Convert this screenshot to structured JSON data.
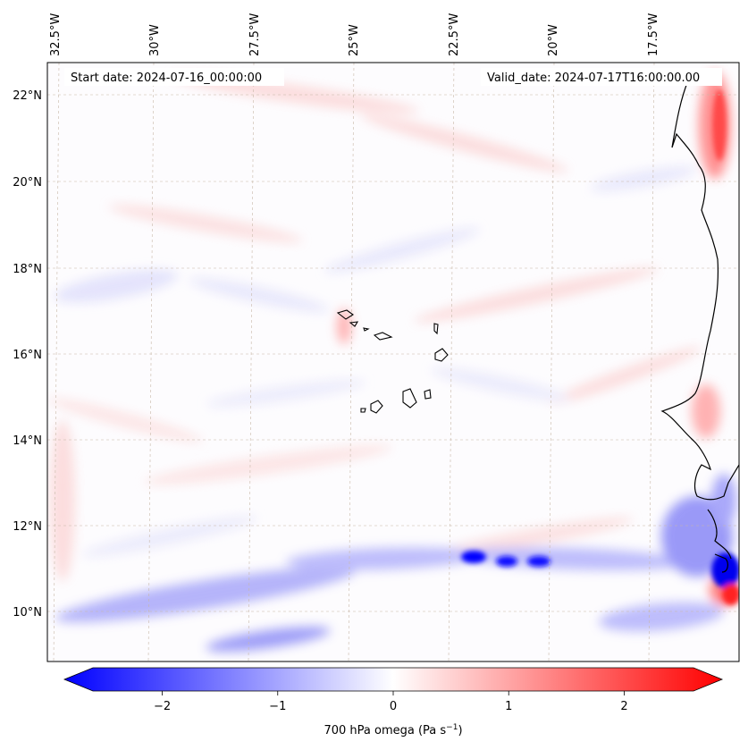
{
  "map": {
    "annotations": {
      "start_date": "Start date: 2024-07-16_00:00:00",
      "valid_date": "Valid_date: 2024-07-17T16:00:00.00"
    },
    "lon_labels": [
      "32.5°W",
      "30°W",
      "27.5°W",
      "25°W",
      "22.5°W",
      "20°W",
      "17.5°W"
    ],
    "lat_labels": [
      "22°N",
      "20°N",
      "18°N",
      "16°N",
      "14°N",
      "12°N",
      "10°N"
    ],
    "colors": {
      "negative": "#0000ff",
      "neutral": "#ffffff",
      "positive": "#ff0000",
      "coastline": "#000000",
      "gridline": "#c8b8a8"
    }
  },
  "colorbar": {
    "label": "700 hPa omega (Pa s⁻¹)",
    "label_main": "700 hPa omega (Pa s",
    "label_sup": "−1",
    "label_end": ")",
    "ticks": [
      "−2",
      "−1",
      "0",
      "1",
      "2"
    ],
    "tick_values": [
      -2,
      -1,
      0,
      1,
      2
    ],
    "range": [
      -2.6,
      2.6
    ]
  }
}
